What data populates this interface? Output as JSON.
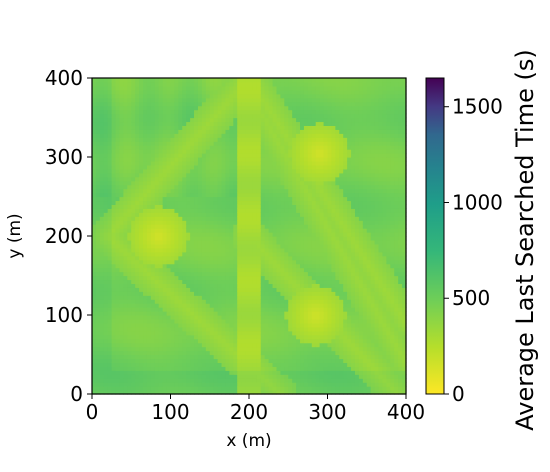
{
  "chart_data": {
    "type": "heatmap",
    "xlabel": "x (m)",
    "ylabel": "y (m)",
    "xlim": [
      0,
      400
    ],
    "ylim": [
      0,
      400
    ],
    "x_ticks": [
      "0",
      "100",
      "200",
      "300",
      "400"
    ],
    "y_ticks": [
      "0",
      "100",
      "200",
      "300",
      "400"
    ],
    "colormap": "viridis_r",
    "colorbar": {
      "label": "Average Last Searched Time (s)",
      "range": [
        0,
        1650
      ],
      "ticks": [
        "0",
        "500",
        "1000",
        "1500"
      ]
    },
    "field_description": {
      "baseline_s": 480,
      "hotspots": [
        {
          "x": 85,
          "y": 200,
          "value_s": 150
        },
        {
          "x": 290,
          "y": 305,
          "value_s": 150
        },
        {
          "x": 285,
          "y": 100,
          "value_s": 160
        }
      ],
      "diagonal_bands": [
        {
          "from": [
            20,
            200
          ],
          "to": [
            200,
            400
          ],
          "value_s": 330
        },
        {
          "from": [
            20,
            200
          ],
          "to": [
            240,
            0
          ],
          "value_s": 330
        },
        {
          "from": [
            200,
            400
          ],
          "to": [
            400,
            90
          ],
          "value_s": 330
        },
        {
          "from": [
            190,
            400
          ],
          "to": [
            400,
            40
          ],
          "value_s": 340
        },
        {
          "from": [
            200,
            200
          ],
          "to": [
            390,
            0
          ],
          "value_s": 330
        }
      ],
      "vertical_strip": {
        "x": [
          185,
          215
        ],
        "value_s": 300
      }
    }
  }
}
